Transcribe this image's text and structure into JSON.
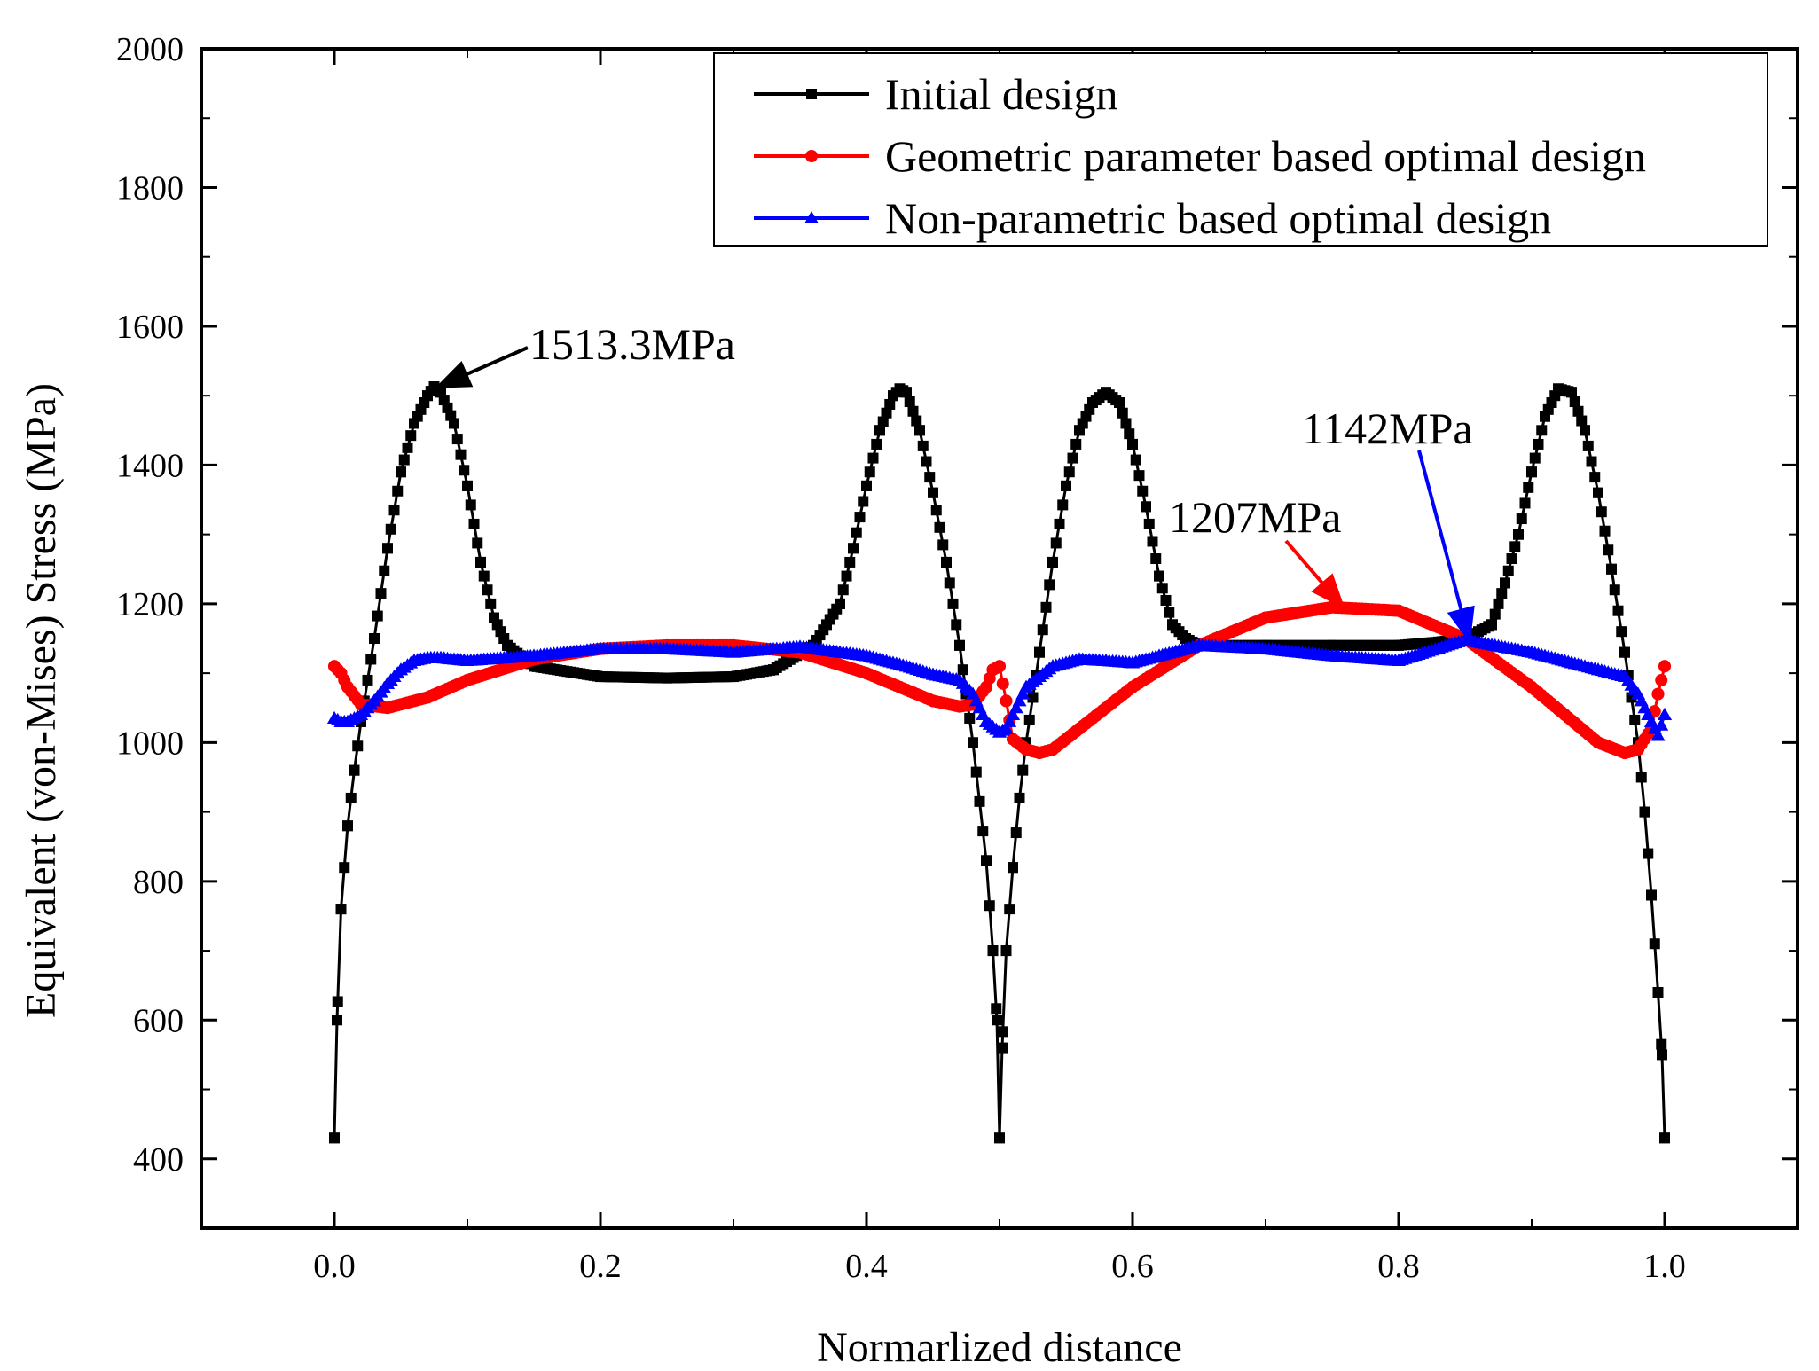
{
  "chart_data": {
    "type": "line",
    "xlabel": "Normarlized distance",
    "ylabel": "Equivalent (von-Mises) Stress (MPa)",
    "xlim": [
      -0.1,
      1.1
    ],
    "ylim": [
      300,
      2000
    ],
    "x_ticks": [
      0.0,
      0.2,
      0.4,
      0.6,
      0.8,
      1.0
    ],
    "x_tick_labels": [
      "0.0",
      "0.2",
      "0.4",
      "0.6",
      "0.8",
      "1.0"
    ],
    "y_ticks": [
      400,
      600,
      800,
      1000,
      1200,
      1400,
      1600,
      1800,
      2000
    ],
    "y_tick_labels": [
      "400",
      "600",
      "800",
      "1000",
      "1200",
      "1400",
      "1600",
      "1800",
      "2000"
    ],
    "legend_position": "top-right",
    "series": [
      {
        "name": "Initial design",
        "color": "#000000",
        "marker": "square",
        "x": [
          0.0,
          0.002,
          0.005,
          0.01,
          0.015,
          0.02,
          0.03,
          0.04,
          0.05,
          0.06,
          0.07,
          0.075,
          0.08,
          0.09,
          0.1,
          0.11,
          0.12,
          0.13,
          0.15,
          0.2,
          0.25,
          0.3,
          0.33,
          0.36,
          0.38,
          0.39,
          0.4,
          0.41,
          0.42,
          0.425,
          0.43,
          0.44,
          0.45,
          0.46,
          0.47,
          0.48,
          0.49,
          0.495,
          0.498,
          0.5,
          0.502,
          0.505,
          0.51,
          0.515,
          0.52,
          0.53,
          0.54,
          0.55,
          0.56,
          0.57,
          0.58,
          0.59,
          0.6,
          0.61,
          0.62,
          0.63,
          0.64,
          0.65,
          0.7,
          0.75,
          0.8,
          0.83,
          0.85,
          0.87,
          0.88,
          0.89,
          0.9,
          0.91,
          0.92,
          0.93,
          0.94,
          0.95,
          0.96,
          0.97,
          0.98,
          0.985,
          0.99,
          0.995,
          0.998,
          1.0
        ],
        "values": [
          430,
          600,
          760,
          880,
          960,
          1030,
          1150,
          1280,
          1390,
          1460,
          1500,
          1513,
          1505,
          1460,
          1370,
          1260,
          1180,
          1140,
          1110,
          1095,
          1093,
          1095,
          1105,
          1140,
          1200,
          1280,
          1370,
          1450,
          1500,
          1510,
          1505,
          1450,
          1360,
          1260,
          1140,
          1000,
          830,
          700,
          600,
          430,
          560,
          700,
          820,
          920,
          1000,
          1130,
          1260,
          1370,
          1450,
          1490,
          1505,
          1490,
          1430,
          1340,
          1240,
          1170,
          1150,
          1140,
          1140,
          1140,
          1140,
          1145,
          1150,
          1170,
          1230,
          1300,
          1390,
          1470,
          1510,
          1505,
          1450,
          1360,
          1250,
          1130,
          1000,
          900,
          780,
          640,
          550,
          430
        ]
      },
      {
        "name": "Geometric parameter based optimal design",
        "color": "#ff0000",
        "marker": "circle",
        "x": [
          0.0,
          0.005,
          0.01,
          0.02,
          0.04,
          0.07,
          0.1,
          0.15,
          0.2,
          0.25,
          0.3,
          0.35,
          0.4,
          0.45,
          0.47,
          0.48,
          0.49,
          0.495,
          0.5,
          0.505,
          0.51,
          0.52,
          0.53,
          0.54,
          0.56,
          0.6,
          0.65,
          0.7,
          0.75,
          0.8,
          0.85,
          0.9,
          0.95,
          0.97,
          0.98,
          0.99,
          0.995,
          1.0
        ],
        "values": [
          1110,
          1100,
          1080,
          1055,
          1050,
          1065,
          1090,
          1120,
          1135,
          1140,
          1140,
          1130,
          1100,
          1060,
          1052,
          1055,
          1080,
          1105,
          1110,
          1060,
          1005,
          990,
          985,
          990,
          1020,
          1080,
          1140,
          1180,
          1195,
          1190,
          1150,
          1080,
          1000,
          985,
          990,
          1020,
          1070,
          1110
        ]
      },
      {
        "name": "Non-parametric based optimal design",
        "color": "#0000ff",
        "marker": "triangle",
        "x": [
          0.0,
          0.005,
          0.01,
          0.02,
          0.03,
          0.04,
          0.05,
          0.06,
          0.07,
          0.08,
          0.1,
          0.15,
          0.2,
          0.25,
          0.3,
          0.35,
          0.4,
          0.43,
          0.45,
          0.47,
          0.48,
          0.49,
          0.5,
          0.505,
          0.51,
          0.52,
          0.54,
          0.56,
          0.58,
          0.6,
          0.62,
          0.65,
          0.7,
          0.75,
          0.8,
          0.85,
          0.9,
          0.93,
          0.95,
          0.97,
          0.98,
          0.99,
          0.995,
          1.0
        ],
        "values": [
          1035,
          1030,
          1030,
          1040,
          1060,
          1085,
          1105,
          1118,
          1122,
          1122,
          1118,
          1125,
          1135,
          1135,
          1130,
          1138,
          1125,
          1110,
          1098,
          1090,
          1070,
          1030,
          1015,
          1020,
          1040,
          1080,
          1110,
          1120,
          1118,
          1115,
          1125,
          1140,
          1135,
          1125,
          1118,
          1148,
          1130,
          1115,
          1105,
          1095,
          1070,
          1030,
          1010,
          1040
        ]
      }
    ],
    "annotations": [
      {
        "text": "1513.3MPa",
        "target_x": 0.078,
        "target_y": 1513
      },
      {
        "text": "1207MPa",
        "target_x": 0.758,
        "target_y": 1196
      },
      {
        "text": "1142MPa",
        "target_x": 0.853,
        "target_y": 1148
      }
    ]
  }
}
